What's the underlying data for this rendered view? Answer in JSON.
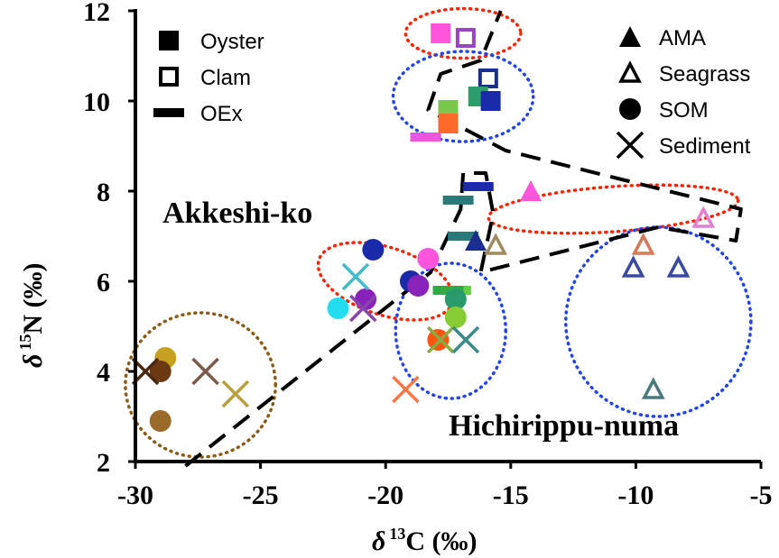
{
  "chart_data": {
    "type": "scatter",
    "title": "",
    "xlabel": {
      "delta": "δ",
      "sup": "13",
      "rest": "C (‰)"
    },
    "ylabel": {
      "delta": "δ",
      "sup": "15",
      "rest": "N (‰)"
    },
    "xlim": [
      -30,
      -5
    ],
    "ylim": [
      2,
      12
    ],
    "x_ticks": [
      -30,
      -25,
      -20,
      -15,
      -10,
      -5
    ],
    "y_ticks": [
      2,
      4,
      6,
      8,
      10,
      12
    ],
    "grid": false,
    "legend_left": [
      {
        "label": "Oyster",
        "marker": "filled-square"
      },
      {
        "label": "Clam",
        "marker": "open-square"
      },
      {
        "label": "OEx",
        "marker": "bar"
      }
    ],
    "legend_right": [
      {
        "label": "AMA",
        "marker": "filled-triangle"
      },
      {
        "label": "Seagrass",
        "marker": "open-triangle"
      },
      {
        "label": "SOM",
        "marker": "filled-circle"
      },
      {
        "label": "Sediment",
        "marker": "cross"
      }
    ],
    "annotations": [
      "Akkeshi-ko",
      "Hichirippu-numa"
    ],
    "points": [
      {
        "x": -17.8,
        "y": 11.5,
        "marker": "filled-square",
        "color": "#ff55dd"
      },
      {
        "x": -16.8,
        "y": 11.4,
        "marker": "open-square",
        "color": "#9a44c4"
      },
      {
        "x": -15.9,
        "y": 10.5,
        "marker": "open-square",
        "color": "#1c2e8c"
      },
      {
        "x": -16.3,
        "y": 10.1,
        "marker": "filled-square",
        "color": "#2f9e6e"
      },
      {
        "x": -15.8,
        "y": 10.0,
        "marker": "filled-square",
        "color": "#1a2aa8"
      },
      {
        "x": -17.5,
        "y": 9.8,
        "marker": "filled-square",
        "color": "#7cc84a"
      },
      {
        "x": -17.5,
        "y": 9.5,
        "marker": "filled-square",
        "color": "#ff6a2a"
      },
      {
        "x": -18.4,
        "y": 9.2,
        "marker": "bar",
        "color": "#ee55dd"
      },
      {
        "x": -16.3,
        "y": 8.1,
        "marker": "bar",
        "color": "#1a2aa8"
      },
      {
        "x": -17.1,
        "y": 7.8,
        "marker": "bar",
        "color": "#2a7a7a"
      },
      {
        "x": -16.9,
        "y": 7.0,
        "marker": "bar",
        "color": "#2a7a7a"
      },
      {
        "x": -17.2,
        "y": 5.8,
        "marker": "bar",
        "color": "#66cc44"
      },
      {
        "x": -17.5,
        "y": 5.8,
        "marker": "bar",
        "color": "#33aa44"
      },
      {
        "x": -16.4,
        "y": 6.9,
        "marker": "filled-triangle",
        "color": "#1c2e8c"
      },
      {
        "x": -14.2,
        "y": 8.0,
        "marker": "filled-triangle",
        "color": "#ff55dd"
      },
      {
        "x": -15.6,
        "y": 6.8,
        "marker": "open-triangle",
        "color": "#a08a60"
      },
      {
        "x": -7.3,
        "y": 7.4,
        "marker": "open-triangle",
        "color": "#e080d0"
      },
      {
        "x": -9.7,
        "y": 6.8,
        "marker": "open-triangle",
        "color": "#d8785a"
      },
      {
        "x": -10.1,
        "y": 6.3,
        "marker": "open-triangle",
        "color": "#3a4aa0"
      },
      {
        "x": -8.3,
        "y": 6.3,
        "marker": "open-triangle",
        "color": "#3a4aa0"
      },
      {
        "x": -9.3,
        "y": 3.6,
        "marker": "open-triangle",
        "color": "#4a7a7a"
      },
      {
        "x": -20.5,
        "y": 6.7,
        "marker": "filled-circle",
        "color": "#1a2aa8"
      },
      {
        "x": -18.3,
        "y": 6.5,
        "marker": "filled-circle",
        "color": "#ff55dd"
      },
      {
        "x": -21.9,
        "y": 5.4,
        "marker": "filled-circle",
        "color": "#22ddee"
      },
      {
        "x": -20.8,
        "y": 5.6,
        "marker": "filled-circle",
        "color": "#8822bb"
      },
      {
        "x": -19.0,
        "y": 6.0,
        "marker": "filled-circle",
        "color": "#1a2aa8"
      },
      {
        "x": -18.7,
        "y": 5.9,
        "marker": "filled-circle",
        "color": "#8822bb"
      },
      {
        "x": -17.2,
        "y": 5.6,
        "marker": "filled-circle",
        "color": "#2a9a6a"
      },
      {
        "x": -17.2,
        "y": 5.2,
        "marker": "filled-circle",
        "color": "#88cc33"
      },
      {
        "x": -17.9,
        "y": 4.7,
        "marker": "filled-circle",
        "color": "#ff5511"
      },
      {
        "x": -28.8,
        "y": 4.3,
        "marker": "filled-circle",
        "color": "#c8a020"
      },
      {
        "x": -29.0,
        "y": 4.0,
        "marker": "filled-circle",
        "color": "#6b3a10"
      },
      {
        "x": -29.0,
        "y": 2.9,
        "marker": "filled-circle",
        "color": "#9a6a2a"
      },
      {
        "x": -21.2,
        "y": 6.1,
        "marker": "cross",
        "color": "#44bbcc"
      },
      {
        "x": -20.9,
        "y": 5.4,
        "marker": "cross",
        "color": "#8844aa"
      },
      {
        "x": -17.8,
        "y": 4.7,
        "marker": "cross",
        "color": "#88aa44"
      },
      {
        "x": -16.8,
        "y": 4.7,
        "marker": "cross",
        "color": "#3a8a8a"
      },
      {
        "x": -19.2,
        "y": 3.6,
        "marker": "cross",
        "color": "#ff7744"
      },
      {
        "x": -27.2,
        "y": 4.0,
        "marker": "cross",
        "color": "#7a5a4a"
      },
      {
        "x": -26.0,
        "y": 3.5,
        "marker": "cross",
        "color": "#b8a040"
      },
      {
        "x": -29.6,
        "y": 4.0,
        "marker": "cross",
        "color": "#4a2a10"
      }
    ],
    "ellipses": [
      {
        "cx": -16.9,
        "cy": 11.5,
        "rx": 2.3,
        "ry": 0.55,
        "angle": 0,
        "color": "#ff2200",
        "dash": "dotted"
      },
      {
        "cx": -16.9,
        "cy": 10.1,
        "rx": 2.8,
        "ry": 1.0,
        "angle": 0,
        "color": "#2244ee",
        "dash": "dotted"
      },
      {
        "cx": -10.9,
        "cy": 7.6,
        "rx": 5.0,
        "ry": 0.5,
        "angle": -4,
        "color": "#ff2200",
        "dash": "dotted"
      },
      {
        "cx": -20.0,
        "cy": 6.0,
        "rx": 2.8,
        "ry": 0.75,
        "angle": 18,
        "color": "#ff2200",
        "dash": "dotted"
      },
      {
        "cx": -17.4,
        "cy": 4.9,
        "rx": 2.2,
        "ry": 1.5,
        "angle": 0,
        "color": "#2244ee",
        "dash": "dotted"
      },
      {
        "cx": -9.1,
        "cy": 5.1,
        "rx": 3.7,
        "ry": 2.1,
        "angle": 0,
        "color": "#2244ee",
        "dash": "dotted"
      },
      {
        "cx": -27.4,
        "cy": 3.7,
        "rx": 3.0,
        "ry": 1.6,
        "angle": 0,
        "color": "#8b5a14",
        "dash": "dotted"
      }
    ],
    "hull_line": {
      "color": "#000000",
      "dash": "dashed",
      "points": [
        [
          -28.0,
          1.9
        ],
        [
          -18.2,
          6.2
        ],
        [
          -17.0,
          7.6
        ],
        [
          -16.9,
          8.4
        ],
        [
          -16.0,
          8.4
        ],
        [
          -15.7,
          7.5
        ],
        [
          -16.2,
          6.2
        ],
        [
          -9.1,
          7.2
        ],
        [
          -6.0,
          6.9
        ],
        [
          -5.8,
          7.6
        ],
        [
          -15.2,
          8.9
        ],
        [
          -18.3,
          9.8
        ],
        [
          -17.8,
          10.6
        ],
        [
          -16.2,
          10.9
        ],
        [
          -15.4,
          12.0
        ]
      ]
    }
  }
}
